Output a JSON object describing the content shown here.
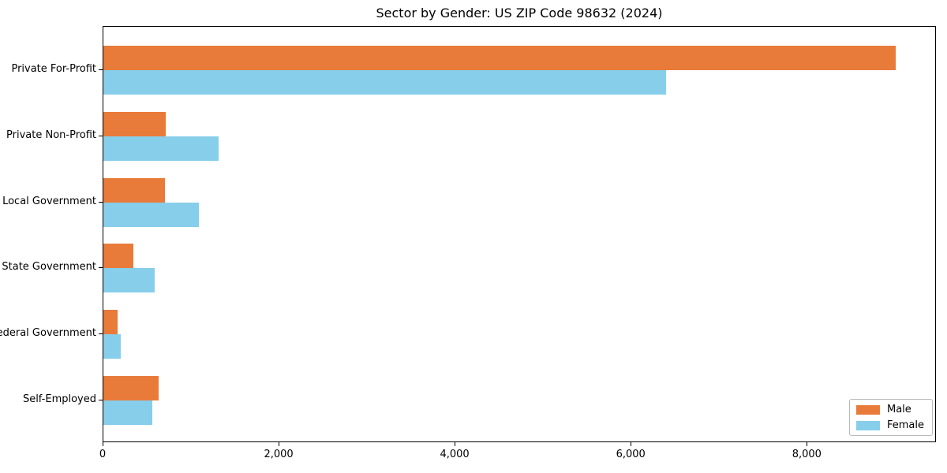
{
  "chart_data": {
    "type": "bar",
    "orientation": "horizontal",
    "title": "Sector by Gender: US ZIP Code 98632 (2024)",
    "categories": [
      "Private For-Profit",
      "Private Non-Profit",
      "Local Government",
      "State Government",
      "Federal Government",
      "Self-Employed"
    ],
    "series": [
      {
        "name": "Male",
        "color": "#e87b3a",
        "values": [
          9000,
          710,
          700,
          340,
          160,
          630
        ]
      },
      {
        "name": "Female",
        "color": "#87ceeb",
        "values": [
          6390,
          1310,
          1080,
          585,
          200,
          555
        ]
      }
    ],
    "xlabel": "",
    "ylabel": "",
    "xlim": [
      0,
      9450
    ],
    "xticks": {
      "values": [
        0,
        2000,
        4000,
        6000,
        8000
      ],
      "labels": [
        "0",
        "2,000",
        "4,000",
        "6,000",
        "8,000"
      ]
    },
    "grid": false,
    "legend": {
      "position": "lower right"
    },
    "colors": {
      "background": "#ffffff",
      "spine": "#000000",
      "text": "#000000",
      "legend_border": "#b9b9b9"
    }
  }
}
